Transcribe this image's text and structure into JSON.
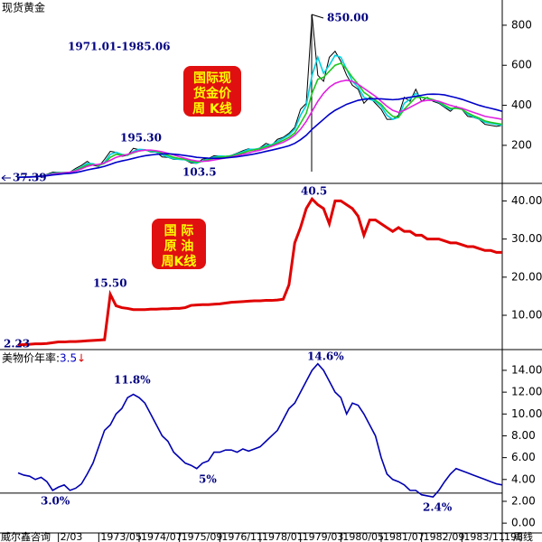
{
  "chart_data": [
    {
      "type": "line",
      "title": "现货黄金",
      "annotations": [
        "1971.01-1985.06",
        "850.00",
        "195.30",
        "103.5",
        "37.39"
      ],
      "box_text": [
        "国际现",
        "货金价",
        "周 K线"
      ],
      "ylim": [
        10,
        926
      ],
      "yticks": [
        200,
        400,
        600,
        800
      ],
      "series": [
        {
          "color": "#000000",
          "values": [
            41,
            42,
            43,
            46,
            48,
            55,
            66,
            65,
            63,
            66,
            85,
            100,
            120,
            100,
            95,
            130,
            170,
            165,
            145,
            150,
            185,
            178,
            178,
            167,
            165,
            142,
            140,
            130,
            130,
            127,
            112,
            110,
            131,
            134,
            148,
            147,
            143,
            150,
            161,
            173,
            183,
            176,
            188,
            210,
            200,
            230,
            240,
            260,
            290,
            380,
            410,
            850,
            550,
            520,
            640,
            670,
            620,
            550,
            500,
            480,
            410,
            440,
            410,
            380,
            330,
            330,
            350,
            440,
            420,
            480,
            420,
            440,
            420,
            410,
            390,
            370,
            395,
            380,
            345,
            340,
            330,
            305,
            300,
            295,
            300
          ]
        },
        {
          "color": "#00d0e0",
          "values": [
            41,
            42,
            43,
            45,
            47,
            52,
            60,
            64,
            64,
            65,
            78,
            92,
            110,
            108,
            98,
            115,
            155,
            165,
            155,
            150,
            170,
            180,
            178,
            170,
            166,
            152,
            142,
            133,
            130,
            128,
            118,
            111,
            122,
            132,
            142,
            147,
            145,
            148,
            157,
            168,
            180,
            180,
            185,
            200,
            203,
            220,
            235,
            252,
            280,
            350,
            400,
            550,
            640,
            560,
            600,
            650,
            640,
            580,
            520,
            490,
            440,
            430,
            420,
            395,
            350,
            330,
            340,
            410,
            430,
            460,
            440,
            435,
            425,
            415,
            395,
            380,
            388,
            382,
            355,
            342,
            332,
            315,
            310,
            305,
            300
          ]
        },
        {
          "color": "#20c820",
          "values": [
            40,
            41,
            42,
            44,
            46,
            50,
            57,
            62,
            64,
            65,
            75,
            88,
            102,
            104,
            100,
            110,
            140,
            155,
            152,
            152,
            163,
            172,
            176,
            174,
            170,
            160,
            150,
            140,
            134,
            130,
            122,
            116,
            120,
            128,
            136,
            142,
            144,
            147,
            153,
            162,
            172,
            178,
            183,
            193,
            200,
            212,
            225,
            240,
            262,
            310,
            360,
            460,
            530,
            540,
            570,
            600,
            610,
            580,
            540,
            505,
            465,
            445,
            425,
            405,
            370,
            345,
            340,
            380,
            410,
            440,
            440,
            436,
            428,
            418,
            400,
            385,
            385,
            380,
            362,
            348,
            336,
            322,
            315,
            310,
            305
          ]
        },
        {
          "color": "#e020e0",
          "values": [
            40,
            41,
            42,
            44,
            46,
            50,
            56,
            60,
            63,
            66,
            72,
            82,
            95,
            102,
            105,
            112,
            125,
            140,
            148,
            155,
            165,
            172,
            176,
            176,
            173,
            168,
            160,
            152,
            143,
            135,
            127,
            122,
            120,
            122,
            127,
            132,
            137,
            142,
            148,
            155,
            162,
            170,
            176,
            185,
            195,
            205,
            215,
            230,
            250,
            280,
            320,
            370,
            420,
            460,
            490,
            510,
            520,
            525,
            520,
            505,
            485,
            465,
            445,
            420,
            395,
            375,
            365,
            375,
            390,
            405,
            420,
            425,
            425,
            420,
            410,
            400,
            392,
            385,
            375,
            365,
            355,
            345,
            340,
            335,
            330
          ]
        },
        {
          "color": "#0000c8",
          "values": [
            40,
            41,
            42,
            43,
            45,
            48,
            52,
            55,
            58,
            60,
            64,
            70,
            77,
            83,
            88,
            95,
            105,
            115,
            122,
            128,
            135,
            142,
            148,
            152,
            155,
            157,
            158,
            156,
            153,
            149,
            145,
            140,
            138,
            136,
            135,
            135,
            137,
            140,
            143,
            147,
            152,
            157,
            163,
            170,
            176,
            183,
            190,
            198,
            210,
            228,
            250,
            280,
            305,
            330,
            355,
            375,
            390,
            405,
            415,
            425,
            430,
            432,
            433,
            432,
            430,
            428,
            430,
            435,
            440,
            445,
            450,
            455,
            456,
            455,
            452,
            445,
            438,
            430,
            420,
            410,
            400,
            392,
            385,
            378,
            370
          ]
        }
      ]
    },
    {
      "type": "line",
      "annotations": [
        "15.50",
        "40.5",
        "2.23"
      ],
      "box_text": [
        "国 际",
        "原 油",
        "周K线"
      ],
      "ylim": [
        1,
        44.6
      ],
      "yticks": [
        {
          "value": 10,
          "label": "10.00"
        },
        {
          "value": 20,
          "label": "20.00"
        },
        {
          "value": 30,
          "label": "30.00"
        },
        {
          "value": 40,
          "label": "40.00"
        }
      ],
      "series": [
        {
          "color": "#e00000",
          "values": [
            2.23,
            2.3,
            2.4,
            2.5,
            2.5,
            2.6,
            2.8,
            3.0,
            3.0,
            3.1,
            3.1,
            3.2,
            3.3,
            3.4,
            3.5,
            3.6,
            15.5,
            12.5,
            12,
            11.8,
            11.5,
            11.5,
            11.5,
            11.6,
            11.6,
            11.7,
            11.7,
            11.8,
            11.8,
            12,
            12.6,
            12.7,
            12.8,
            12.8,
            12.9,
            13,
            13.2,
            13.4,
            13.5,
            13.6,
            13.7,
            13.8,
            13.8,
            13.9,
            13.9,
            14,
            14.2,
            18,
            29,
            33,
            38,
            40.5,
            39,
            38,
            34,
            40,
            40,
            39,
            38,
            36,
            31,
            35,
            35,
            34,
            33,
            32,
            33,
            32,
            32,
            31,
            31,
            30,
            30,
            30,
            29.5,
            29,
            29,
            28.5,
            28,
            28,
            27.5,
            27,
            27,
            26.5,
            26.5
          ]
        }
      ]
    },
    {
      "type": "line",
      "title": "美物价年率:",
      "current_value": "3.5",
      "current_arrow": "↓",
      "annotations": [
        "3.0%",
        "11.8%",
        "5%",
        "14.6%",
        "2.4%"
      ],
      "x_left_label": "威尔鑫咨询",
      "x_right_label": "周线",
      "hline": 2.75,
      "ylim": [
        -0.9,
        15.9
      ],
      "yticks": [
        {
          "value": 0,
          "label": "0.00"
        },
        {
          "value": 2,
          "label": "2.00"
        },
        {
          "value": 4,
          "label": "4.00"
        },
        {
          "value": 6,
          "label": "6.00"
        },
        {
          "value": 8,
          "label": "8.00"
        },
        {
          "value": 10,
          "label": "10.00"
        },
        {
          "value": 12,
          "label": "12.00"
        },
        {
          "value": 14,
          "label": "14.00"
        }
      ],
      "categories": [
        null,
        null,
        null,
        null,
        null,
        null,
        null,
        "2/03",
        null,
        null,
        null,
        null,
        null,
        null,
        "1973/05",
        null,
        null,
        null,
        null,
        null,
        null,
        "1974/07",
        null,
        null,
        null,
        null,
        null,
        null,
        "1975/09",
        null,
        null,
        null,
        null,
        null,
        null,
        "1976/11",
        null,
        null,
        null,
        null,
        null,
        null,
        "1978/01",
        null,
        null,
        null,
        null,
        null,
        null,
        "1979/03",
        null,
        null,
        null,
        null,
        null,
        null,
        "1980/05",
        null,
        null,
        null,
        null,
        null,
        null,
        "1981/07",
        null,
        null,
        null,
        null,
        null,
        null,
        "1982/09",
        null,
        null,
        null,
        null,
        null,
        null,
        "1983/11",
        null,
        null,
        null,
        null,
        null,
        null,
        "198"
      ],
      "series": [
        {
          "color": "#0000b0",
          "values": [
            4.6,
            4.4,
            4.3,
            4.0,
            4.2,
            3.8,
            3.0,
            3.3,
            3.5,
            3.0,
            3.2,
            3.6,
            4.5,
            5.5,
            7,
            8.5,
            9,
            10,
            10.5,
            11.5,
            11.8,
            11.5,
            11,
            10,
            9,
            8,
            7.5,
            6.5,
            6,
            5.5,
            5.3,
            5,
            5.5,
            5.7,
            6.5,
            6.5,
            6.7,
            6.7,
            6.5,
            6.8,
            6.6,
            6.8,
            7,
            7.5,
            8,
            8.5,
            9.5,
            10.5,
            11,
            12,
            13,
            14,
            14.6,
            14,
            13,
            12,
            11.5,
            10,
            11,
            10.8,
            10,
            9,
            8,
            6,
            4.5,
            4,
            3.8,
            3.5,
            3,
            3,
            2.6,
            2.5,
            2.4,
            3,
            3.8,
            4.5,
            5,
            4.8,
            4.6,
            4.4,
            4.2,
            4,
            3.8,
            3.6,
            3.5
          ]
        }
      ]
    }
  ]
}
